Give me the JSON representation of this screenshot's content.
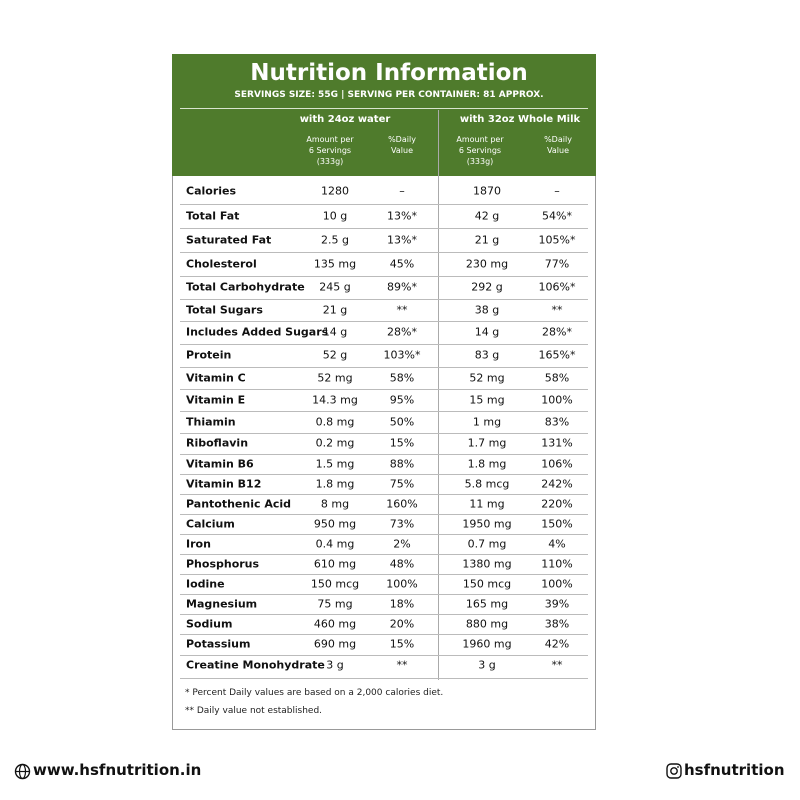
{
  "header": {
    "title": "Nutrition Information",
    "subtitle": "SERVINGS SIZE: 55G | SERVING PER CONTAINER: 81 APPROX."
  },
  "columns": {
    "groups": [
      "with 24oz water",
      "with 32oz Whole Milk"
    ],
    "amount": [
      "Amount per",
      "6 Servings",
      "(333g)"
    ],
    "daily": [
      "%Daily",
      "Value"
    ]
  },
  "table": {
    "rows": [
      [
        "Calories",
        "1280",
        "–",
        "1870",
        "–"
      ],
      [
        "Total Fat",
        "10 g",
        "13%*",
        "42 g",
        "54%*"
      ],
      [
        "Saturated Fat",
        "2.5 g",
        "13%*",
        "21 g",
        "105%*"
      ],
      [
        "Cholesterol",
        "135 mg",
        "45%",
        "230 mg",
        "77%"
      ],
      [
        "Total Carbohydrate",
        "245 g",
        "89%*",
        "292 g",
        "106%*"
      ],
      [
        "Total Sugars",
        "21 g",
        "**",
        "38 g",
        "**"
      ],
      [
        "Includes Added Sugars",
        "14 g",
        "28%*",
        "14 g",
        "28%*"
      ],
      [
        "Protein",
        "52 g",
        "103%*",
        "83 g",
        "165%*"
      ],
      [
        "Vitamin C",
        "52 mg",
        "58%",
        "52 mg",
        "58%"
      ],
      [
        "Vitamin E",
        "14.3 mg",
        "95%",
        "15 mg",
        "100%"
      ],
      [
        "Thiamin",
        "0.8 mg",
        "50%",
        "1 mg",
        "83%"
      ],
      [
        "Riboflavin",
        "0.2 mg",
        "15%",
        "1.7 mg",
        "131%"
      ],
      [
        "Vitamin B6",
        "1.5 mg",
        "88%",
        "1.8 mg",
        "106%"
      ],
      [
        "Vitamin B12",
        "1.8 mg",
        "75%",
        "5.8 mcg",
        "242%"
      ],
      [
        "Pantothenic Acid",
        "8 mg",
        "160%",
        "11 mg",
        "220%"
      ],
      [
        "Calcium",
        "950 mg",
        "73%",
        "1950 mg",
        "150%"
      ],
      [
        "Iron",
        "0.4 mg",
        "2%",
        "0.7 mg",
        "4%"
      ],
      [
        "Phosphorus",
        "610 mg",
        "48%",
        "1380 mg",
        "110%"
      ],
      [
        "Iodine",
        "150 mcg",
        "100%",
        "150 mcg",
        "100%"
      ],
      [
        "Magnesium",
        "75 mg",
        "18%",
        "165 mg",
        "39%"
      ],
      [
        "Sodium",
        "460 mg",
        "20%",
        "880 mg",
        "38%"
      ],
      [
        "Potassium",
        "690 mg",
        "15%",
        "1960 mg",
        "42%"
      ],
      [
        "Creatine Monohydrate",
        "3 g",
        "**",
        "3 g",
        "**"
      ]
    ]
  },
  "footnotes": [
    "* Percent Daily values are based on a 2,000 calories diet.",
    "** Daily value not established."
  ],
  "footer": {
    "website": "www.hsfnutrition.in",
    "social": "hsfnutrition"
  }
}
